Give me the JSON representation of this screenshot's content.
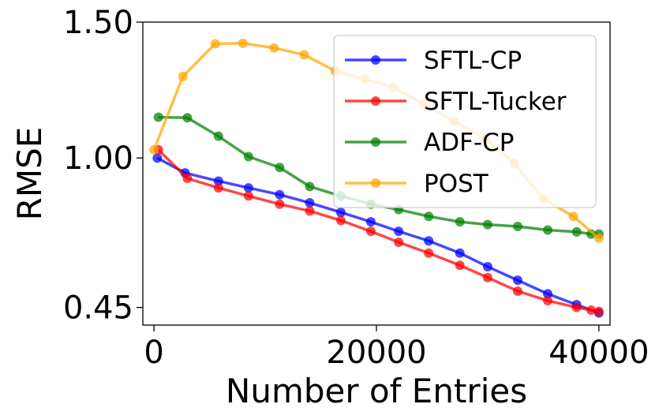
{
  "chart_data": {
    "type": "line",
    "title": "",
    "xlabel": "Number of Entries",
    "ylabel": "RMSE",
    "xlim": [
      -1000,
      41000
    ],
    "ylim": [
      0.385,
      1.5
    ],
    "xticks": [
      0,
      20000,
      40000
    ],
    "xtick_labels": [
      "0",
      "20000",
      "40000"
    ],
    "yticks": [
      0.45,
      1.0,
      1.5
    ],
    "ytick_labels": [
      "0.45",
      "1.00",
      "1.50"
    ],
    "grid": false,
    "legend_position": "top-right",
    "series": [
      {
        "name": "SFTL-CP",
        "color": "#0000ff",
        "x": [
          300,
          2800,
          5800,
          8500,
          11300,
          14000,
          16800,
          19500,
          22000,
          24700,
          27500,
          30000,
          32700,
          35400,
          38000,
          40000
        ],
        "y": [
          1.0,
          0.945,
          0.915,
          0.89,
          0.865,
          0.835,
          0.8,
          0.765,
          0.73,
          0.695,
          0.65,
          0.6,
          0.55,
          0.5,
          0.46,
          0.43
        ]
      },
      {
        "name": "SFTL-Tucker",
        "color": "#ff0000",
        "x": [
          400,
          3000,
          5800,
          8500,
          11300,
          14000,
          16800,
          19500,
          22000,
          24700,
          27500,
          30000,
          32700,
          35400,
          38000,
          39300,
          40000
        ],
        "y": [
          1.03,
          0.925,
          0.89,
          0.86,
          0.83,
          0.805,
          0.77,
          0.73,
          0.69,
          0.65,
          0.605,
          0.56,
          0.51,
          0.475,
          0.45,
          0.44,
          0.435
        ]
      },
      {
        "name": "ADF-CP",
        "color": "#008000",
        "x": [
          400,
          3000,
          5800,
          8500,
          11300,
          14000,
          16800,
          19500,
          22000,
          24700,
          27500,
          30000,
          32700,
          35400,
          38000,
          39300,
          40000
        ],
        "y": [
          1.15,
          1.148,
          1.08,
          1.005,
          0.965,
          0.895,
          0.86,
          0.83,
          0.81,
          0.785,
          0.765,
          0.755,
          0.748,
          0.735,
          0.728,
          0.72,
          0.72
        ]
      },
      {
        "name": "POST",
        "color": "#ffa500",
        "x": [
          0,
          2600,
          5500,
          8000,
          10800,
          13500,
          16300,
          19000,
          21500,
          24200,
          27000,
          29800,
          32400,
          35000,
          37700,
          40000
        ],
        "y": [
          1.03,
          1.3,
          1.42,
          1.422,
          1.405,
          1.38,
          1.32,
          1.29,
          1.26,
          1.2,
          1.135,
          1.07,
          0.98,
          0.85,
          0.785,
          0.705
        ]
      }
    ]
  }
}
